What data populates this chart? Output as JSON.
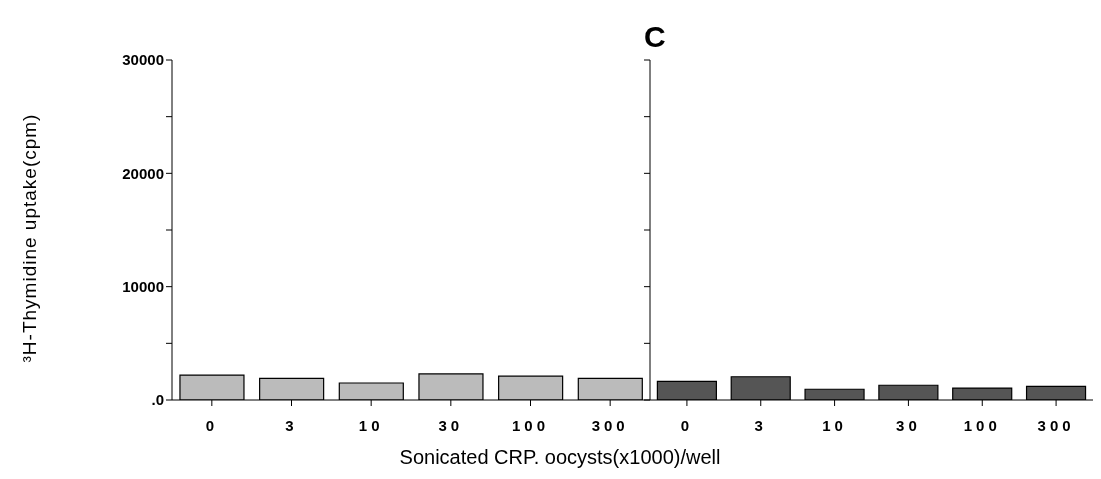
{
  "chart_data": [
    {
      "type": "bar",
      "ylabel": "³H-Thymidine uptake(cpm)",
      "xlabel": "Sonicated CRP. oocysts(x1000)/well",
      "categories": [
        "0",
        "3",
        "10",
        "30",
        "100",
        "300"
      ],
      "values": [
        2200,
        1900,
        1500,
        2300,
        2100,
        1900
      ],
      "color": "#bbbbbb",
      "ylim": [
        0,
        30000
      ],
      "yticks": [
        {
          "value": 0,
          "label": ".0"
        },
        {
          "value": 5000,
          "label": null
        },
        10000,
        {
          "value": 15000,
          "label": null
        },
        20000,
        {
          "value": 25000,
          "label": null
        },
        30000
      ]
    },
    {
      "type": "bar",
      "title": "C",
      "categories": [
        "0",
        "3",
        "10",
        "30",
        "100",
        "300"
      ],
      "values": [
        1650,
        2050,
        950,
        1300,
        1050,
        1200
      ],
      "color": "#555555",
      "ylim": [
        0,
        30000
      ],
      "yticks": [
        0,
        5000,
        10000,
        15000,
        20000,
        25000,
        30000
      ],
      "tick_labels": "x"
    }
  ]
}
